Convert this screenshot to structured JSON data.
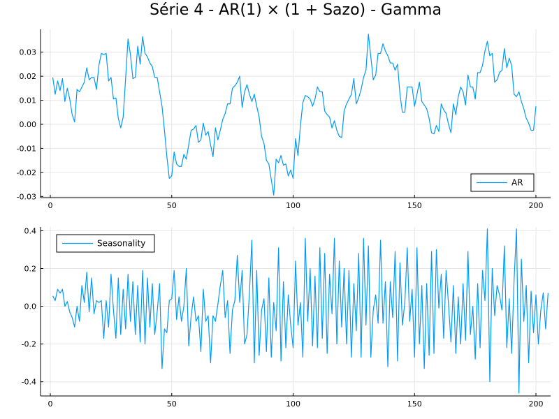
{
  "title": "Série 4 - AR(1) × (1 + Sazo) - Gamma",
  "colors": {
    "series": "#009AF9",
    "grid": "#E6E6E6",
    "axis": "#000000"
  },
  "chart_data": [
    {
      "type": "line",
      "name": "AR",
      "legend_position": "bottom-right",
      "grid": true,
      "xlim": [
        1,
        200
      ],
      "ylim": [
        -0.0305,
        0.0395
      ],
      "xticks": [
        0,
        50,
        100,
        150,
        200
      ],
      "yticks": [
        -0.03,
        -0.02,
        -0.01,
        0.0,
        0.01,
        0.02,
        0.03
      ],
      "ytick_labels": [
        "-0.03",
        "-0.02",
        "-0.01",
        "0.00",
        "0.01",
        "0.02",
        "0.03"
      ],
      "series": [
        {
          "name": "AR",
          "x_start": 1,
          "values": [
            0.0195,
            0.0125,
            0.018,
            0.014,
            0.019,
            0.0095,
            0.015,
            0.0105,
            0.004,
            0.001,
            0.0145,
            0.0135,
            0.0155,
            0.0175,
            0.0235,
            0.0185,
            0.0195,
            0.0195,
            0.0145,
            0.0245,
            0.0295,
            0.029,
            0.0295,
            0.018,
            0.0195,
            0.0105,
            0.011,
            0.0025,
            -0.0015,
            0.003,
            0.019,
            0.0355,
            0.029,
            0.019,
            0.0195,
            0.0325,
            0.025,
            0.0365,
            0.0295,
            0.028,
            0.0255,
            0.024,
            0.0195,
            0.0195,
            0.0135,
            0.0075,
            -0.0025,
            -0.0135,
            -0.0225,
            -0.0215,
            -0.0115,
            -0.0165,
            -0.0175,
            -0.0175,
            -0.0125,
            -0.0145,
            -0.0085,
            -0.0025,
            -0.002,
            -0.0005,
            -0.0075,
            -0.0065,
            0.0005,
            -0.0045,
            -0.003,
            -0.0085,
            -0.0135,
            -0.0015,
            -0.0065,
            -0.0025,
            0.002,
            0.0045,
            0.0085,
            0.0085,
            0.015,
            0.016,
            0.0175,
            0.02,
            0.007,
            0.0135,
            0.0165,
            0.0125,
            0.0095,
            0.0125,
            0.0075,
            0.003,
            -0.005,
            -0.008,
            -0.015,
            -0.0165,
            -0.023,
            -0.0295,
            -0.0145,
            -0.016,
            -0.013,
            -0.017,
            -0.0165,
            -0.0215,
            -0.019,
            -0.0225,
            -0.006,
            -0.013,
            -0.0005,
            0.009,
            0.012,
            0.0115,
            0.0105,
            0.0075,
            0.0105,
            0.0155,
            0.0135,
            0.0135,
            0.0055,
            0.004,
            0.003,
            -0.0015,
            0.0015,
            -0.0025,
            -0.005,
            -0.0055,
            0.0055,
            0.0085,
            0.0105,
            0.0125,
            0.019,
            0.0085,
            0.011,
            0.0145,
            0.0195,
            0.0225,
            0.0375,
            0.028,
            0.0185,
            0.0205,
            0.0295,
            0.0295,
            0.0335,
            0.0305,
            0.0285,
            0.0255,
            0.0255,
            0.0225,
            0.025,
            0.0125,
            0.005,
            0.005,
            0.0155,
            0.0155,
            0.0155,
            0.0075,
            0.0125,
            0.0175,
            0.0095,
            0.008,
            0.0065,
            0.0025,
            -0.0035,
            -0.004,
            -0.0005,
            -0.003,
            0.0085,
            0.006,
            0.0045,
            0.0,
            -0.0035,
            0.0085,
            0.004,
            0.0115,
            0.0155,
            0.0135,
            0.008,
            0.0205,
            0.0155,
            0.0155,
            0.0105,
            0.0215,
            0.0215,
            0.0245,
            0.0305,
            0.0345,
            0.0285,
            0.0295,
            0.0175,
            0.0185,
            0.0215,
            0.0225,
            0.0315,
            0.0235,
            0.0275,
            0.0245,
            0.0125,
            0.0115,
            0.0135,
            0.0095,
            0.0065,
            0.0025,
            0.0005,
            -0.0025,
            -0.0025,
            0.0075
          ]
        }
      ]
    },
    {
      "type": "line",
      "name": "Seasonality",
      "legend_position": "top-left",
      "grid": true,
      "xlim": [
        1,
        200
      ],
      "ylim": [
        -0.475,
        0.42
      ],
      "xticks": [
        0,
        50,
        100,
        150,
        200
      ],
      "yticks": [
        -0.4,
        -0.2,
        0.0,
        0.2,
        0.4
      ],
      "ytick_labels": [
        "-0.4",
        "-0.2",
        "0.0",
        "0.2",
        "0.4"
      ],
      "series": [
        {
          "name": "Seasonality",
          "x_start": 1,
          "values": [
            0.055,
            0.03,
            0.09,
            0.07,
            0.09,
            0.0,
            0.025,
            -0.03,
            -0.06,
            -0.11,
            0.0,
            -0.08,
            0.11,
            0.02,
            0.18,
            -0.03,
            0.15,
            -0.04,
            0.03,
            0.02,
            0.03,
            -0.17,
            0.03,
            -0.11,
            0.17,
            -0.02,
            -0.17,
            0.15,
            -0.15,
            0.09,
            -0.12,
            0.17,
            -0.08,
            0.13,
            -0.15,
            0.11,
            -0.19,
            0.19,
            -0.2,
            0.15,
            -0.11,
            0.12,
            -0.15,
            -0.03,
            0.12,
            -0.33,
            -0.12,
            -0.14,
            0.03,
            0.04,
            0.19,
            -0.07,
            0.05,
            -0.08,
            0.0,
            0.2,
            -0.21,
            -0.05,
            0.05,
            -0.08,
            -0.05,
            -0.24,
            0.09,
            -0.08,
            -0.05,
            -0.3,
            -0.05,
            -0.08,
            0.01,
            0.11,
            0.19,
            -0.06,
            0.03,
            -0.25,
            -0.02,
            0.03,
            0.27,
            0.02,
            0.19,
            -0.2,
            -0.15,
            0.07,
            0.35,
            -0.3,
            0.19,
            -0.26,
            -0.02,
            0.04,
            -0.24,
            0.15,
            -0.27,
            0.02,
            -0.13,
            0.31,
            -0.29,
            0.13,
            -0.22,
            0.06,
            -0.1,
            -0.22,
            0.24,
            -0.1,
            0.02,
            -0.27,
            0.36,
            -0.08,
            0.2,
            -0.21,
            0.16,
            -0.22,
            0.31,
            -0.17,
            0.28,
            -0.25,
            0.17,
            -0.04,
            0.36,
            -0.2,
            0.24,
            -0.11,
            0.2,
            -0.2,
            0.19,
            -0.27,
            0.12,
            -0.13,
            0.28,
            -0.27,
            0.36,
            -0.1,
            0.32,
            -0.27,
            -0.02,
            0.06,
            -0.09,
            0.35,
            -0.09,
            0.13,
            -0.32,
            0.13,
            -0.06,
            0.29,
            -0.29,
            0.23,
            -0.1,
            0.02,
            0.31,
            -0.08,
            0.09,
            -0.27,
            0.31,
            -0.2,
            0.11,
            -0.33,
            0.12,
            -0.26,
            0.29,
            -0.25,
            0.3,
            -0.01,
            0.17,
            -0.17,
            0.19,
            0.01,
            -0.19,
            0.11,
            -0.25,
            0.05,
            -0.2,
            0.12,
            -0.18,
            0.29,
            -0.15,
            0.0,
            -0.28,
            0.12,
            -0.22,
            0.19,
            0.03,
            0.41,
            -0.4,
            0.2,
            -0.05,
            0.11,
            0.06,
            -0.02,
            0.32,
            -0.22,
            0.04,
            -0.25,
            0.14,
            0.41,
            -0.46,
            0.25,
            -0.08,
            0.11,
            -0.3,
            0.08,
            -0.14,
            0.06,
            -0.2,
            -0.02,
            0.07,
            -0.12,
            0.07
          ]
        }
      ]
    }
  ]
}
